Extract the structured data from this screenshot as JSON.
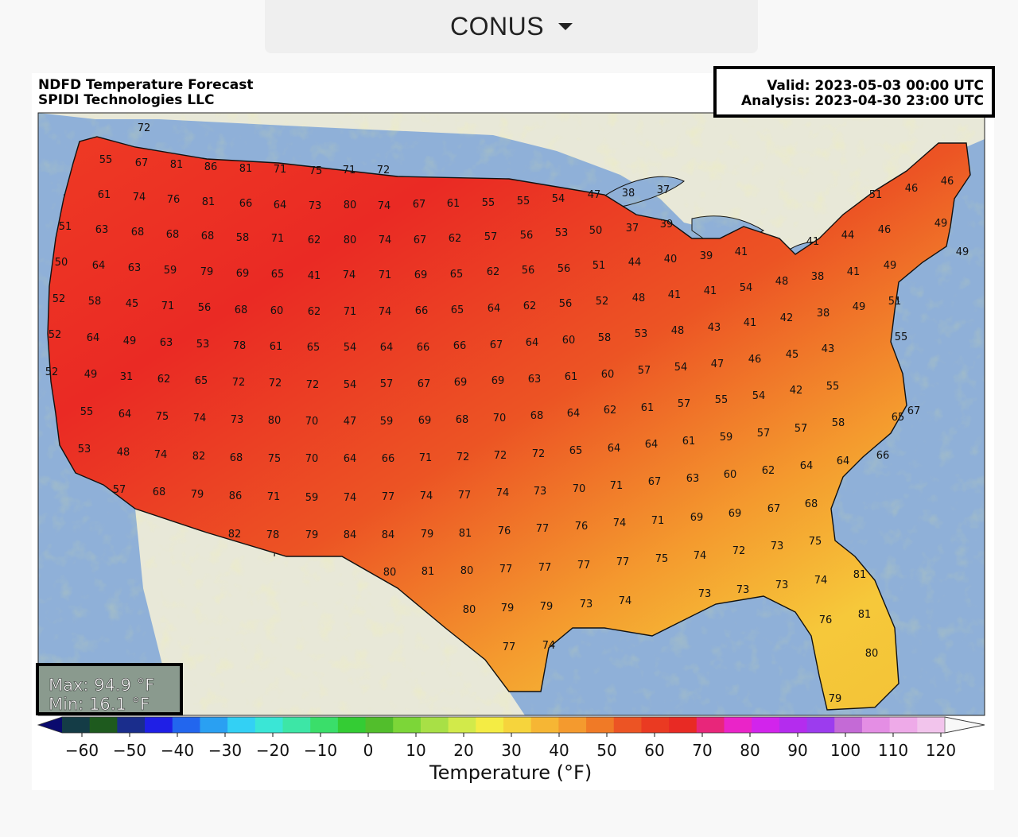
{
  "region_selector": {
    "label": "CONUS"
  },
  "header": {
    "title": "NDFD Temperature Forecast",
    "subtitle": "SPIDI Technologies LLC",
    "valid": "Valid: 2023-05-03 00:00 UTC",
    "analysis": "Analysis: 2023-04-30 23:00 UTC"
  },
  "stats": {
    "max": "Max: 94.9 °F",
    "min": "Min: 16.1 °F"
  },
  "colorbar": {
    "title": "Temperature (°F)",
    "ticks": [
      "−60",
      "−50",
      "−40",
      "−30",
      "−20",
      "−10",
      "0",
      "10",
      "20",
      "30",
      "40",
      "50",
      "60",
      "70",
      "80",
      "90",
      "100",
      "110",
      "120"
    ],
    "colors": [
      "#0a0a6e",
      "#143c46",
      "#1e5a1e",
      "#1a2d8c",
      "#1f1fe6",
      "#2266ee",
      "#2aa0f2",
      "#33d0f4",
      "#3ae6d6",
      "#3de6a6",
      "#3ade6a",
      "#34cc34",
      "#52be2c",
      "#7cd638",
      "#a8e046",
      "#d2ea4a",
      "#f4ec44",
      "#f6d43c",
      "#f6b634",
      "#f49a2e",
      "#f07a26",
      "#ec5424",
      "#ea3a22",
      "#e82a24",
      "#e8267a",
      "#ea24c8",
      "#d224ec",
      "#b42cee",
      "#9c3cee",
      "#c46ad6",
      "#e48ee4",
      "#eeaae8",
      "#f2c4ec",
      "#f8f8f8"
    ]
  },
  "map": {
    "ocean_color": "#8fb0d8",
    "land_color": "#e8e8d8",
    "labels": [
      [
        "72",
        181,
        165
      ],
      [
        "55",
        133,
        205
      ],
      [
        "67",
        178,
        209
      ],
      [
        "81",
        222,
        211
      ],
      [
        "86",
        265,
        214
      ],
      [
        "81",
        309,
        216
      ],
      [
        "71",
        352,
        217
      ],
      [
        "75",
        397,
        219
      ],
      [
        "71",
        439,
        218
      ],
      [
        "72",
        482,
        218
      ],
      [
        "61",
        131,
        249
      ],
      [
        "74",
        175,
        252
      ],
      [
        "76",
        218,
        255
      ],
      [
        "81",
        262,
        258
      ],
      [
        "66",
        309,
        260
      ],
      [
        "64",
        352,
        262
      ],
      [
        "73",
        396,
        263
      ],
      [
        "80",
        440,
        262
      ],
      [
        "74",
        483,
        263
      ],
      [
        "67",
        527,
        261
      ],
      [
        "61",
        570,
        260
      ],
      [
        "55",
        614,
        259
      ],
      [
        "55",
        658,
        257
      ],
      [
        "54",
        702,
        254
      ],
      [
        "47",
        747,
        249
      ],
      [
        "38",
        790,
        247
      ],
      [
        "37",
        834,
        243
      ],
      [
        "51",
        82,
        289
      ],
      [
        "63",
        128,
        293
      ],
      [
        "68",
        173,
        296
      ],
      [
        "68",
        217,
        299
      ],
      [
        "68",
        261,
        301
      ],
      [
        "58",
        305,
        303
      ],
      [
        "71",
        349,
        304
      ],
      [
        "62",
        395,
        306
      ],
      [
        "80",
        440,
        306
      ],
      [
        "74",
        484,
        306
      ],
      [
        "67",
        528,
        306
      ],
      [
        "62",
        572,
        304
      ],
      [
        "57",
        617,
        302
      ],
      [
        "56",
        662,
        300
      ],
      [
        "53",
        706,
        297
      ],
      [
        "50",
        749,
        294
      ],
      [
        "37",
        795,
        291
      ],
      [
        "39",
        838,
        286
      ],
      [
        "44",
        1066,
        300
      ],
      [
        "46",
        1112,
        293
      ],
      [
        "49",
        1183,
        285
      ],
      [
        "46",
        1146,
        241
      ],
      [
        "46",
        1191,
        232
      ],
      [
        "51",
        1101,
        249
      ],
      [
        "49",
        1210,
        321
      ],
      [
        "50",
        77,
        334
      ],
      [
        "64",
        124,
        338
      ],
      [
        "63",
        169,
        341
      ],
      [
        "59",
        214,
        344
      ],
      [
        "79",
        260,
        346
      ],
      [
        "69",
        305,
        348
      ],
      [
        "65",
        349,
        349
      ],
      [
        "41",
        395,
        351
      ],
      [
        "74",
        439,
        350
      ],
      [
        "71",
        484,
        350
      ],
      [
        "69",
        529,
        350
      ],
      [
        "65",
        574,
        349
      ],
      [
        "62",
        620,
        346
      ],
      [
        "56",
        664,
        344
      ],
      [
        "56",
        709,
        342
      ],
      [
        "51",
        753,
        338
      ],
      [
        "44",
        798,
        334
      ],
      [
        "40",
        843,
        330
      ],
      [
        "39",
        888,
        326
      ],
      [
        "41",
        932,
        321
      ],
      [
        "41",
        1022,
        308
      ],
      [
        "49",
        1119,
        338
      ],
      [
        "38",
        1028,
        352
      ],
      [
        "41",
        1073,
        346
      ],
      [
        "52",
        74,
        380
      ],
      [
        "58",
        119,
        383
      ],
      [
        "45",
        166,
        386
      ],
      [
        "71",
        211,
        389
      ],
      [
        "56",
        257,
        391
      ],
      [
        "68",
        303,
        394
      ],
      [
        "60",
        348,
        395
      ],
      [
        "62",
        395,
        396
      ],
      [
        "71",
        440,
        396
      ],
      [
        "74",
        484,
        396
      ],
      [
        "66",
        530,
        395
      ],
      [
        "65",
        575,
        394
      ],
      [
        "64",
        621,
        392
      ],
      [
        "62",
        666,
        389
      ],
      [
        "56",
        711,
        386
      ],
      [
        "52",
        757,
        383
      ],
      [
        "48",
        803,
        379
      ],
      [
        "41",
        848,
        375
      ],
      [
        "41",
        893,
        370
      ],
      [
        "54",
        938,
        366
      ],
      [
        "48",
        983,
        358
      ],
      [
        "51",
        1125,
        383
      ],
      [
        "52",
        69,
        425
      ],
      [
        "64",
        117,
        429
      ],
      [
        "49",
        163,
        433
      ],
      [
        "63",
        209,
        435
      ],
      [
        "53",
        255,
        437
      ],
      [
        "78",
        301,
        439
      ],
      [
        "61",
        347,
        440
      ],
      [
        "65",
        394,
        441
      ],
      [
        "54",
        440,
        441
      ],
      [
        "64",
        486,
        441
      ],
      [
        "66",
        532,
        441
      ],
      [
        "66",
        578,
        439
      ],
      [
        "67",
        624,
        438
      ],
      [
        "64",
        669,
        435
      ],
      [
        "60",
        715,
        432
      ],
      [
        "58",
        760,
        429
      ],
      [
        "53",
        806,
        424
      ],
      [
        "48",
        852,
        420
      ],
      [
        "43",
        898,
        416
      ],
      [
        "41",
        943,
        410
      ],
      [
        "42",
        989,
        404
      ],
      [
        "38",
        1035,
        398
      ],
      [
        "49",
        1080,
        390
      ],
      [
        "55",
        1133,
        428
      ],
      [
        "52",
        65,
        472
      ],
      [
        "49",
        114,
        475
      ],
      [
        "31",
        159,
        478
      ],
      [
        "62",
        206,
        481
      ],
      [
        "65",
        253,
        483
      ],
      [
        "72",
        300,
        485
      ],
      [
        "72",
        346,
        486
      ],
      [
        "72",
        393,
        488
      ],
      [
        "54",
        440,
        488
      ],
      [
        "57",
        486,
        487
      ],
      [
        "67",
        533,
        487
      ],
      [
        "69",
        579,
        485
      ],
      [
        "69",
        626,
        483
      ],
      [
        "63",
        672,
        481
      ],
      [
        "61",
        718,
        478
      ],
      [
        "60",
        764,
        475
      ],
      [
        "57",
        810,
        470
      ],
      [
        "54",
        856,
        466
      ],
      [
        "47",
        902,
        462
      ],
      [
        "46",
        949,
        456
      ],
      [
        "45",
        996,
        450
      ],
      [
        "43",
        1041,
        443
      ],
      [
        "55",
        109,
        522
      ],
      [
        "64",
        157,
        525
      ],
      [
        "75",
        204,
        528
      ],
      [
        "74",
        251,
        530
      ],
      [
        "73",
        298,
        532
      ],
      [
        "80",
        345,
        533
      ],
      [
        "70",
        392,
        534
      ],
      [
        "47",
        440,
        534
      ],
      [
        "59",
        486,
        534
      ],
      [
        "69",
        534,
        533
      ],
      [
        "68",
        581,
        532
      ],
      [
        "70",
        628,
        530
      ],
      [
        "68",
        675,
        527
      ],
      [
        "64",
        721,
        524
      ],
      [
        "62",
        767,
        520
      ],
      [
        "61",
        814,
        517
      ],
      [
        "57",
        860,
        512
      ],
      [
        "55",
        907,
        507
      ],
      [
        "54",
        954,
        502
      ],
      [
        "42",
        1001,
        495
      ],
      [
        "55",
        1047,
        490
      ],
      [
        "65",
        1129,
        529
      ],
      [
        "67",
        1149,
        521
      ],
      [
        "53",
        106,
        569
      ],
      [
        "48",
        155,
        573
      ],
      [
        "74",
        202,
        576
      ],
      [
        "82",
        250,
        578
      ],
      [
        "68",
        297,
        580
      ],
      [
        "75",
        345,
        581
      ],
      [
        "70",
        392,
        581
      ],
      [
        "64",
        440,
        581
      ],
      [
        "66",
        488,
        581
      ],
      [
        "71",
        535,
        580
      ],
      [
        "72",
        582,
        579
      ],
      [
        "72",
        629,
        577
      ],
      [
        "72",
        677,
        575
      ],
      [
        "65",
        724,
        571
      ],
      [
        "64",
        772,
        568
      ],
      [
        "64",
        819,
        563
      ],
      [
        "61",
        866,
        559
      ],
      [
        "59",
        913,
        554
      ],
      [
        "57",
        960,
        549
      ],
      [
        "57",
        1007,
        543
      ],
      [
        "58",
        1054,
        536
      ],
      [
        "64",
        1060,
        584
      ],
      [
        "66",
        1110,
        577
      ],
      [
        "57",
        150,
        620
      ],
      [
        "68",
        200,
        623
      ],
      [
        "79",
        248,
        626
      ],
      [
        "86",
        296,
        628
      ],
      [
        "71",
        344,
        629
      ],
      [
        "59",
        392,
        630
      ],
      [
        "74",
        440,
        630
      ],
      [
        "77",
        488,
        629
      ],
      [
        "74",
        536,
        628
      ],
      [
        "77",
        584,
        627
      ],
      [
        "74",
        632,
        624
      ],
      [
        "73",
        679,
        622
      ],
      [
        "70",
        728,
        619
      ],
      [
        "71",
        775,
        615
      ],
      [
        "67",
        823,
        610
      ],
      [
        "63",
        871,
        606
      ],
      [
        "60",
        918,
        601
      ],
      [
        "62",
        966,
        596
      ],
      [
        "64",
        1014,
        590
      ],
      [
        "82",
        295,
        676
      ],
      [
        "78",
        343,
        677
      ],
      [
        "79",
        392,
        677
      ],
      [
        "84",
        440,
        677
      ],
      [
        "84",
        488,
        677
      ],
      [
        "79",
        537,
        676
      ],
      [
        "81",
        585,
        675
      ],
      [
        "76",
        634,
        672
      ],
      [
        "77",
        682,
        669
      ],
      [
        "76",
        731,
        666
      ],
      [
        "74",
        779,
        662
      ],
      [
        "71",
        827,
        659
      ],
      [
        "69",
        876,
        655
      ],
      [
        "69",
        924,
        650
      ],
      [
        "67",
        973,
        644
      ],
      [
        "68",
        1020,
        638
      ],
      [
        "80",
        490,
        724
      ],
      [
        "81",
        538,
        723
      ],
      [
        "80",
        587,
        722
      ],
      [
        "77",
        636,
        720
      ],
      [
        "77",
        685,
        718
      ],
      [
        "77",
        734,
        715
      ],
      [
        "77",
        783,
        711
      ],
      [
        "75",
        832,
        707
      ],
      [
        "74",
        880,
        703
      ],
      [
        "72",
        929,
        697
      ],
      [
        "73",
        977,
        691
      ],
      [
        "75",
        1025,
        685
      ],
      [
        "80",
        590,
        771
      ],
      [
        "79",
        638,
        769
      ],
      [
        "79",
        687,
        767
      ],
      [
        "73",
        737,
        764
      ],
      [
        "74",
        786,
        760
      ],
      [
        "73",
        886,
        751
      ],
      [
        "73",
        934,
        746
      ],
      [
        "73",
        983,
        740
      ],
      [
        "74",
        1032,
        734
      ],
      [
        "81",
        1081,
        727
      ],
      [
        "76",
        1038,
        784
      ],
      [
        "81",
        1087,
        777
      ],
      [
        "77",
        640,
        818
      ],
      [
        "74",
        690,
        816
      ],
      [
        "80",
        1096,
        826
      ],
      [
        "79",
        1050,
        883
      ]
    ]
  }
}
